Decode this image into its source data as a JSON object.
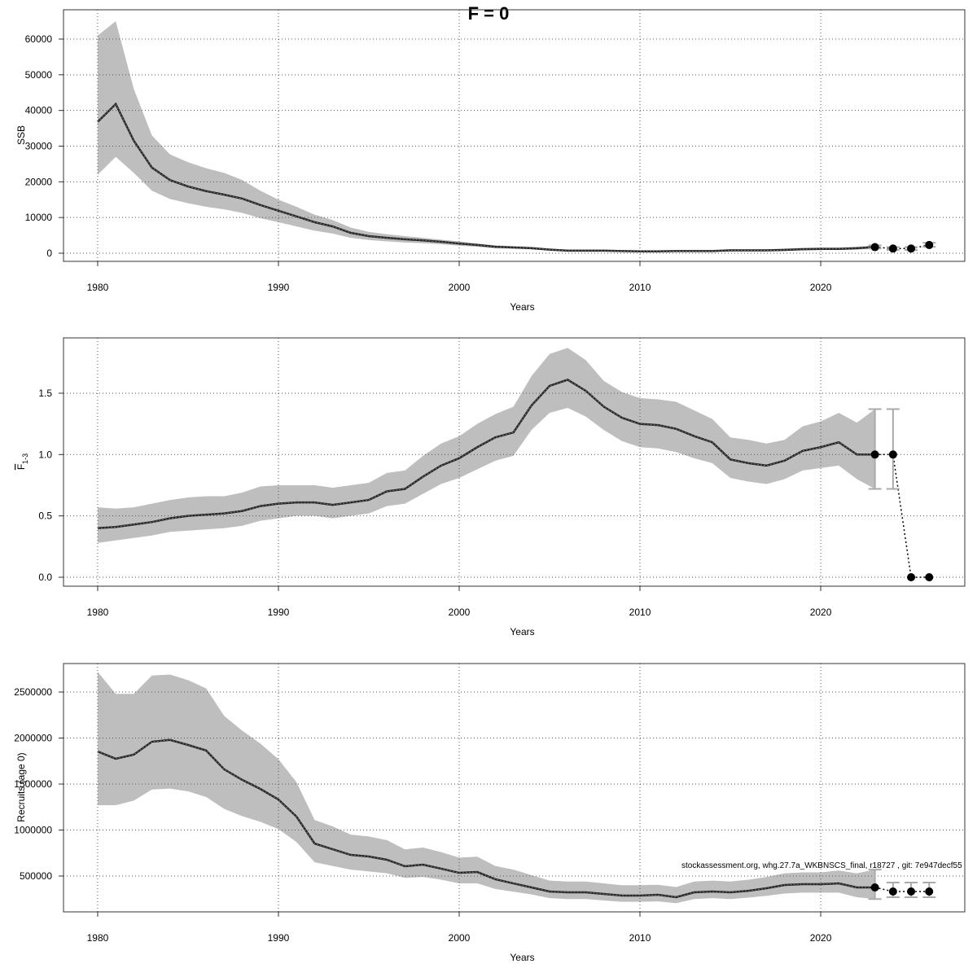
{
  "title": "F = 0",
  "annotation": "stockassessment.org, whg.27.7a_WKBNSCS_final, r18727 , git: 7e947decf55",
  "colors": {
    "band": "#bebebe",
    "line": "#000000",
    "grid": "#555555",
    "errorbar": "#aaaaaa"
  },
  "chart_data": [
    {
      "type": "line",
      "id": "ssb",
      "ylabel": "SSB",
      "xlabel": "Years",
      "xlim": [
        1978.11,
        2027.97
      ],
      "ylim": [
        -2281,
        68213
      ],
      "xticks": [
        1980,
        1990,
        2000,
        2010,
        2020
      ],
      "yticks": [
        0,
        10000,
        20000,
        30000,
        40000,
        50000,
        60000
      ],
      "grid": true,
      "years": [
        1980,
        1981,
        1982,
        1983,
        1984,
        1985,
        1986,
        1987,
        1988,
        1989,
        1990,
        1991,
        1992,
        1993,
        1994,
        1995,
        1996,
        1997,
        1998,
        1999,
        2000,
        2001,
        2002,
        2003,
        2004,
        2005,
        2006,
        2007,
        2008,
        2009,
        2010,
        2011,
        2012,
        2013,
        2014,
        2015,
        2016,
        2017,
        2018,
        2019,
        2020,
        2021,
        2022,
        2023
      ],
      "estimate": [
        36800,
        41800,
        31500,
        24000,
        20500,
        18700,
        17400,
        16400,
        15300,
        13500,
        11900,
        10300,
        8700,
        7500,
        5700,
        4800,
        4300,
        3900,
        3600,
        3200,
        2700,
        2300,
        1800,
        1600,
        1400,
        1000,
        700,
        700,
        700,
        600,
        500,
        500,
        600,
        600,
        600,
        800,
        800,
        800,
        900,
        1100,
        1200,
        1200,
        1400,
        1700
      ],
      "upper": [
        61000,
        65000,
        46000,
        33000,
        27700,
        25500,
        23800,
        22500,
        20500,
        17500,
        15000,
        13000,
        10800,
        9300,
        7200,
        6000,
        5300,
        4800,
        4300,
        3800,
        3300,
        2700,
        2200,
        2000,
        1800,
        1300,
        1000,
        1000,
        1000,
        900,
        800,
        800,
        900,
        900,
        900,
        1100,
        1100,
        1100,
        1300,
        1500,
        1600,
        1600,
        1800,
        2200
      ],
      "lower": [
        22000,
        27000,
        22500,
        17500,
        15200,
        14000,
        13000,
        12300,
        11300,
        9800,
        8700,
        7500,
        6300,
        5500,
        4300,
        3700,
        3300,
        3000,
        2800,
        2500,
        2100,
        1800,
        1400,
        1300,
        1100,
        800,
        500,
        500,
        500,
        400,
        300,
        300,
        400,
        400,
        400,
        600,
        600,
        600,
        650,
        800,
        900,
        900,
        1000,
        1300
      ],
      "forecast": {
        "years": [
          2023,
          2024,
          2025,
          2026
        ],
        "values": [
          1700,
          1300,
          1300,
          2300
        ],
        "lower": [
          1300,
          900,
          900,
          1800
        ],
        "upper": [
          2200,
          1700,
          1700,
          2900
        ]
      }
    },
    {
      "type": "line",
      "id": "fbar",
      "ylabel": "F",
      "ylabel_sub": "1-3",
      "xlabel": "Years",
      "xlim": [
        1978.11,
        2027.97
      ],
      "ylim": [
        -0.073,
        1.951
      ],
      "xticks": [
        1980,
        1990,
        2000,
        2010,
        2020
      ],
      "yticks": [
        0.0,
        0.5,
        1.0,
        1.5
      ],
      "ytick_labels": [
        "0.0",
        "0.5",
        "1.0",
        "1.5"
      ],
      "grid": true,
      "years": [
        1980,
        1981,
        1982,
        1983,
        1984,
        1985,
        1986,
        1987,
        1988,
        1989,
        1990,
        1991,
        1992,
        1993,
        1994,
        1995,
        1996,
        1997,
        1998,
        1999,
        2000,
        2001,
        2002,
        2003,
        2004,
        2005,
        2006,
        2007,
        2008,
        2009,
        2010,
        2011,
        2012,
        2013,
        2014,
        2015,
        2016,
        2017,
        2018,
        2019,
        2020,
        2021,
        2022,
        2023
      ],
      "estimate": [
        0.4,
        0.41,
        0.43,
        0.45,
        0.48,
        0.5,
        0.51,
        0.52,
        0.54,
        0.58,
        0.6,
        0.61,
        0.61,
        0.59,
        0.61,
        0.63,
        0.7,
        0.72,
        0.82,
        0.91,
        0.97,
        1.06,
        1.14,
        1.18,
        1.4,
        1.56,
        1.61,
        1.52,
        1.39,
        1.3,
        1.25,
        1.24,
        1.21,
        1.15,
        1.1,
        0.96,
        0.93,
        0.91,
        0.95,
        1.03,
        1.06,
        1.1,
        1.0,
        1.0
      ],
      "upper": [
        0.57,
        0.56,
        0.57,
        0.6,
        0.63,
        0.65,
        0.66,
        0.66,
        0.69,
        0.74,
        0.75,
        0.75,
        0.75,
        0.73,
        0.75,
        0.77,
        0.85,
        0.87,
        0.99,
        1.09,
        1.15,
        1.25,
        1.33,
        1.39,
        1.64,
        1.82,
        1.87,
        1.77,
        1.6,
        1.51,
        1.46,
        1.45,
        1.43,
        1.36,
        1.29,
        1.14,
        1.12,
        1.09,
        1.12,
        1.23,
        1.27,
        1.34,
        1.26,
        1.37
      ],
      "lower": [
        0.28,
        0.3,
        0.32,
        0.34,
        0.37,
        0.38,
        0.39,
        0.4,
        0.42,
        0.46,
        0.48,
        0.5,
        0.5,
        0.48,
        0.5,
        0.52,
        0.58,
        0.6,
        0.68,
        0.76,
        0.81,
        0.88,
        0.95,
        0.99,
        1.2,
        1.34,
        1.38,
        1.31,
        1.2,
        1.11,
        1.06,
        1.05,
        1.02,
        0.97,
        0.93,
        0.81,
        0.78,
        0.76,
        0.8,
        0.87,
        0.89,
        0.91,
        0.8,
        0.72
      ],
      "forecast": {
        "years": [
          2023,
          2024,
          2025,
          2026
        ],
        "values": [
          1.0,
          1.0,
          0.0,
          0.0
        ],
        "lower": [
          0.72,
          0.72,
          0.0,
          0.0
        ],
        "upper": [
          1.37,
          1.37,
          0.0,
          0.0
        ]
      }
    },
    {
      "type": "line",
      "id": "recruits",
      "ylabel": "Recruits (age 0)",
      "xlabel": "Years",
      "xlim": [
        1978.11,
        2027.97
      ],
      "ylim": [
        110600,
        2810000
      ],
      "xticks": [
        1980,
        1990,
        2000,
        2010,
        2020
      ],
      "yticks": [
        500000,
        1000000,
        1500000,
        2000000,
        2500000
      ],
      "grid": true,
      "years": [
        1980,
        1981,
        1982,
        1983,
        1984,
        1985,
        1986,
        1987,
        1988,
        1989,
        1990,
        1991,
        1992,
        1993,
        1994,
        1995,
        1996,
        1997,
        1998,
        1999,
        2000,
        2001,
        2002,
        2003,
        2004,
        2005,
        2006,
        2007,
        2008,
        2009,
        2010,
        2011,
        2012,
        2013,
        2014,
        2015,
        2016,
        2017,
        2018,
        2019,
        2020,
        2021,
        2022,
        2023
      ],
      "estimate": [
        1854000,
        1775000,
        1820000,
        1960000,
        1980000,
        1925000,
        1865000,
        1660000,
        1545000,
        1447000,
        1332000,
        1146000,
        854000,
        792000,
        730000,
        712000,
        677000,
        606000,
        624000,
        580000,
        535000,
        544000,
        465000,
        420000,
        376000,
        332000,
        323000,
        323000,
        305000,
        288000,
        288000,
        296000,
        270000,
        323000,
        332000,
        323000,
        340000,
        367000,
        403000,
        411000,
        411000,
        420000,
        376000,
        376000
      ],
      "upper": [
        2720000,
        2480000,
        2480000,
        2680000,
        2690000,
        2630000,
        2540000,
        2240000,
        2080000,
        1940000,
        1770000,
        1520000,
        1110000,
        1040000,
        950000,
        930000,
        890000,
        790000,
        810000,
        760000,
        700000,
        710000,
        610000,
        570000,
        510000,
        450000,
        440000,
        440000,
        420000,
        400000,
        400000,
        405000,
        380000,
        440000,
        450000,
        440000,
        460000,
        490000,
        530000,
        540000,
        540000,
        560000,
        530000,
        570000
      ],
      "lower": [
        1270000,
        1270000,
        1320000,
        1440000,
        1450000,
        1420000,
        1360000,
        1230000,
        1150000,
        1090000,
        1010000,
        870000,
        650000,
        610000,
        570000,
        550000,
        530000,
        480000,
        490000,
        460000,
        420000,
        420000,
        360000,
        330000,
        300000,
        260000,
        250000,
        250000,
        235000,
        220000,
        220000,
        225000,
        205000,
        250000,
        260000,
        250000,
        265000,
        285000,
        310000,
        320000,
        320000,
        320000,
        270000,
        250000
      ],
      "forecast": {
        "years": [
          2023,
          2024,
          2025,
          2026
        ],
        "values": [
          376000,
          332000,
          332000,
          332000
        ],
        "lower": [
          250000,
          270000,
          270000,
          270000
        ],
        "upper": [
          570000,
          429000,
          429000,
          429000
        ]
      }
    }
  ]
}
